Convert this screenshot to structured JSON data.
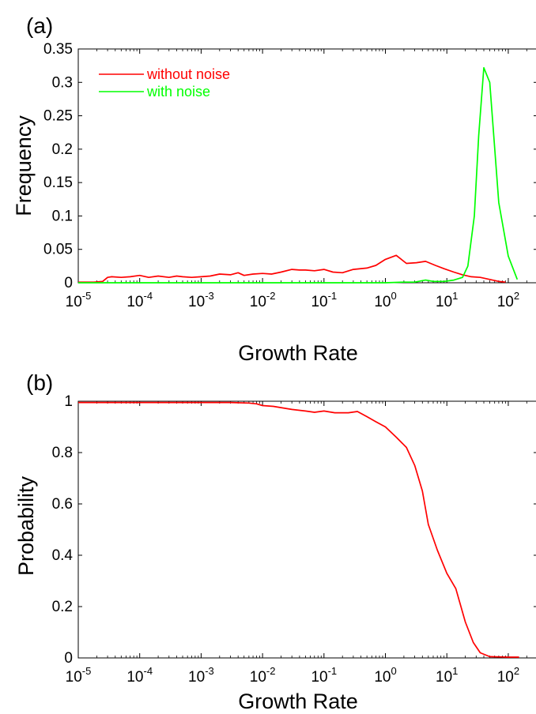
{
  "chart_data": [
    {
      "panel_label": "(a)",
      "type": "line",
      "xlabel": "Growth Rate",
      "ylabel": "Frequency",
      "x_scale": "log",
      "xlim": [
        1e-05,
        300
      ],
      "ylim": [
        0,
        0.35
      ],
      "x_ticks": [
        {
          "base": "10",
          "exp": "-5",
          "value": 1e-05
        },
        {
          "base": "10",
          "exp": "-4",
          "value": 0.0001
        },
        {
          "base": "10",
          "exp": "-3",
          "value": 0.001
        },
        {
          "base": "10",
          "exp": "-2",
          "value": 0.01
        },
        {
          "base": "10",
          "exp": "-1",
          "value": 0.1
        },
        {
          "base": "10",
          "exp": "0",
          "value": 1
        },
        {
          "base": "10",
          "exp": "1",
          "value": 10
        },
        {
          "base": "10",
          "exp": "2",
          "value": 100
        }
      ],
      "y_ticks": [
        "0",
        "0.05",
        "0.1",
        "0.15",
        "0.2",
        "0.25",
        "0.3",
        "0.35"
      ],
      "y_tick_values": [
        0,
        0.05,
        0.1,
        0.15,
        0.2,
        0.25,
        0.3,
        0.35
      ],
      "legend_position": "top-left",
      "series": [
        {
          "name": "without noise",
          "color": "#ff0000",
          "x": [
            1e-05,
            1.8e-05,
            2.5e-05,
            3e-05,
            3.5e-05,
            5e-05,
            7e-05,
            0.0001,
            0.00014,
            0.0002,
            0.0003,
            0.0004,
            0.0005,
            0.0007,
            0.001,
            0.0014,
            0.002,
            0.003,
            0.004,
            0.005,
            0.007,
            0.01,
            0.014,
            0.02,
            0.03,
            0.04,
            0.05,
            0.07,
            0.1,
            0.14,
            0.2,
            0.3,
            0.5,
            0.7,
            1,
            1.5,
            2.2,
            3.2,
            4.5,
            6.5,
            9,
            13,
            18,
            25,
            35,
            50,
            70,
            90
          ],
          "y": [
            0.001,
            0.001,
            0.002,
            0.008,
            0.009,
            0.008,
            0.009,
            0.011,
            0.008,
            0.01,
            0.008,
            0.01,
            0.009,
            0.008,
            0.009,
            0.01,
            0.013,
            0.012,
            0.015,
            0.011,
            0.013,
            0.014,
            0.013,
            0.016,
            0.02,
            0.019,
            0.019,
            0.018,
            0.02,
            0.016,
            0.015,
            0.02,
            0.022,
            0.026,
            0.035,
            0.041,
            0.029,
            0.03,
            0.032,
            0.026,
            0.021,
            0.016,
            0.012,
            0.009,
            0.008,
            0.005,
            0.002,
            0.001
          ]
        },
        {
          "name": "with noise",
          "color": "#00ff00",
          "x": [
            1e-05,
            0.5,
            1,
            2,
            3,
            4.5,
            6,
            9,
            13,
            18,
            22,
            28,
            33,
            40,
            50,
            70,
            100,
            140
          ],
          "y": [
            0,
            0,
            0,
            0.001,
            0.001,
            0.004,
            0.002,
            0.002,
            0.004,
            0.008,
            0.025,
            0.1,
            0.22,
            0.322,
            0.3,
            0.12,
            0.04,
            0.005
          ]
        }
      ]
    },
    {
      "panel_label": "(b)",
      "type": "line",
      "xlabel": "Growth Rate",
      "ylabel": "Probability",
      "x_scale": "log",
      "xlim": [
        1e-05,
        300
      ],
      "ylim": [
        0,
        1
      ],
      "x_ticks": [
        {
          "base": "10",
          "exp": "-5",
          "value": 1e-05
        },
        {
          "base": "10",
          "exp": "-4",
          "value": 0.0001
        },
        {
          "base": "10",
          "exp": "-3",
          "value": 0.001
        },
        {
          "base": "10",
          "exp": "-2",
          "value": 0.01
        },
        {
          "base": "10",
          "exp": "-1",
          "value": 0.1
        },
        {
          "base": "10",
          "exp": "0",
          "value": 1
        },
        {
          "base": "10",
          "exp": "1",
          "value": 10
        },
        {
          "base": "10",
          "exp": "2",
          "value": 100
        }
      ],
      "y_ticks": [
        "0",
        "0.2",
        "0.4",
        "0.6",
        "0.8",
        "1"
      ],
      "y_tick_values": [
        0,
        0.2,
        0.4,
        0.6,
        0.8,
        1
      ],
      "series": [
        {
          "color": "#ff0000",
          "x": [
            1e-05,
            0.0001,
            0.001,
            0.003,
            0.006,
            0.008,
            0.01,
            0.015,
            0.02,
            0.03,
            0.05,
            0.07,
            0.1,
            0.15,
            0.25,
            0.35,
            0.5,
            0.7,
            1,
            1.5,
            2.2,
            3,
            4,
            5,
            7,
            10,
            14,
            20,
            27,
            35,
            50,
            100,
            150
          ],
          "y": [
            0.995,
            0.995,
            0.995,
            0.995,
            0.993,
            0.99,
            0.983,
            0.98,
            0.975,
            0.968,
            0.962,
            0.957,
            0.962,
            0.955,
            0.955,
            0.96,
            0.94,
            0.92,
            0.9,
            0.86,
            0.82,
            0.75,
            0.65,
            0.52,
            0.42,
            0.33,
            0.27,
            0.14,
            0.06,
            0.02,
            0.005,
            0.003,
            0.003
          ]
        }
      ]
    }
  ]
}
